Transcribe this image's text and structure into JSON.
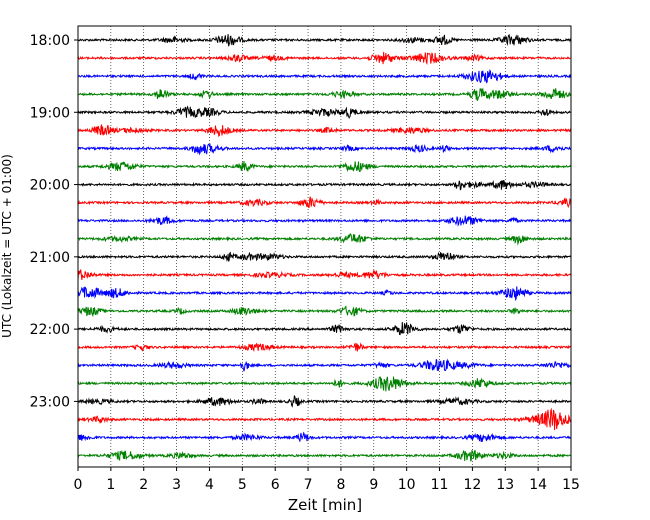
{
  "chart_data": {
    "type": "line",
    "title": "",
    "xlabel": "Zeit  [min]",
    "ylabel": "UTC (Lokalzeit = UTC + 01:00)",
    "xlim": [
      0,
      15
    ],
    "x_ticks": [
      "0",
      "1",
      "2",
      "3",
      "4",
      "5",
      "6",
      "7",
      "8",
      "9",
      "10",
      "11",
      "12",
      "13",
      "14",
      "15"
    ],
    "y_ticks": [
      "18:00",
      "19:00",
      "20:00",
      "21:00",
      "22:00",
      "23:00"
    ],
    "vertical_grid": true,
    "trace_interval_min": 15,
    "trace_colors": [
      "#000000",
      "#ff0000",
      "#0000ff",
      "#008000"
    ],
    "traces": [
      "18:00",
      "18:15",
      "18:30",
      "18:45",
      "19:00",
      "19:15",
      "19:30",
      "19:45",
      "20:00",
      "20:15",
      "20:30",
      "20:45",
      "21:00",
      "21:15",
      "21:30",
      "21:45",
      "22:00",
      "22:15",
      "22:30",
      "22:45",
      "23:00",
      "23:15",
      "23:30",
      "23:45"
    ]
  }
}
